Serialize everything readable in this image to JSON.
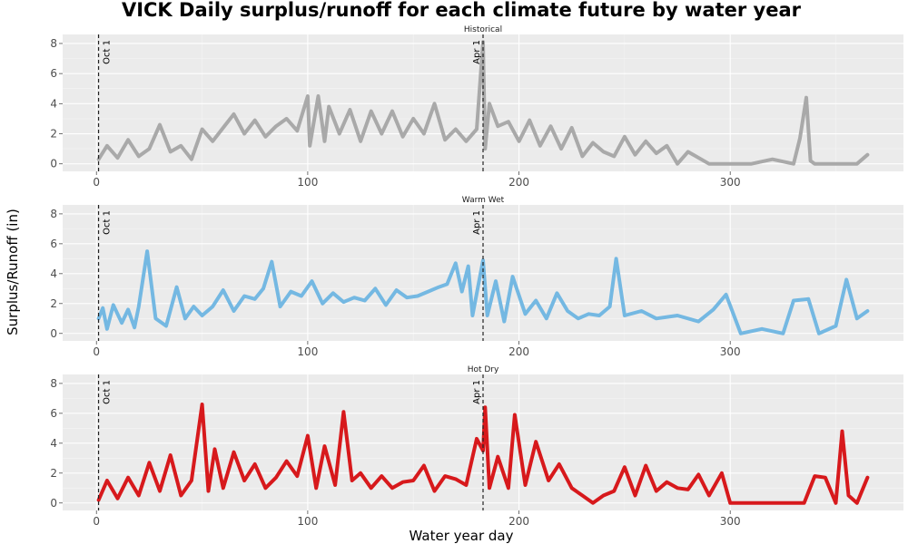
{
  "chart_data": {
    "type": "line",
    "title": "VICK Daily surplus/runoff for each climate future by water year",
    "xlabel": "Water year day",
    "ylabel": "Surplus/Runoff (in)",
    "xlim": [
      -16,
      382
    ],
    "ylim": [
      -0.5,
      8.6
    ],
    "xticks": [
      0,
      100,
      200,
      300
    ],
    "yticks": [
      0,
      2,
      4,
      6,
      8
    ],
    "grid": true,
    "legend": "none",
    "reference_lines": [
      {
        "x": 1,
        "label": "Oct 1"
      },
      {
        "x": 183,
        "label": "Apr 1"
      }
    ],
    "panels": [
      {
        "name": "Historical",
        "color": "#A9A9A9",
        "x": [
          1,
          5,
          10,
          15,
          20,
          25,
          30,
          35,
          40,
          45,
          50,
          55,
          60,
          65,
          70,
          75,
          80,
          85,
          90,
          95,
          100,
          101,
          105,
          108,
          110,
          115,
          120,
          125,
          130,
          135,
          140,
          145,
          150,
          155,
          160,
          165,
          170,
          175,
          180,
          183,
          184,
          186,
          190,
          195,
          200,
          205,
          210,
          215,
          220,
          225,
          230,
          235,
          240,
          245,
          250,
          255,
          260,
          265,
          270,
          275,
          280,
          290,
          300,
          310,
          320,
          330,
          333,
          336,
          338,
          340,
          345,
          350,
          355,
          360,
          365
        ],
        "values": [
          0.3,
          1.2,
          0.4,
          1.6,
          0.5,
          1.0,
          2.6,
          0.8,
          1.2,
          0.3,
          2.3,
          1.5,
          2.4,
          3.3,
          2.0,
          2.9,
          1.8,
          2.5,
          3.0,
          2.2,
          4.5,
          1.2,
          4.5,
          1.5,
          3.8,
          2.0,
          3.6,
          1.5,
          3.5,
          2.0,
          3.5,
          1.8,
          3.0,
          2.0,
          4.0,
          1.6,
          2.3,
          1.5,
          2.3,
          8.1,
          1.0,
          4.0,
          2.5,
          2.8,
          1.5,
          2.9,
          1.2,
          2.5,
          1.0,
          2.4,
          0.5,
          1.4,
          0.8,
          0.5,
          1.8,
          0.6,
          1.5,
          0.7,
          1.2,
          0.0,
          0.8,
          0.0,
          0.0,
          0.0,
          0.3,
          0.0,
          1.7,
          4.4,
          0.2,
          0.0,
          0.0,
          0.0,
          0.0,
          0.0,
          0.6
        ]
      },
      {
        "name": "Warm Wet",
        "color": "#74B8E2",
        "x": [
          1,
          3,
          5,
          8,
          12,
          15,
          18,
          20,
          24,
          28,
          33,
          38,
          42,
          46,
          50,
          55,
          60,
          65,
          70,
          75,
          79,
          83,
          87,
          92,
          97,
          102,
          107,
          112,
          117,
          122,
          127,
          132,
          137,
          142,
          147,
          152,
          157,
          162,
          166,
          170,
          173,
          176,
          178,
          183,
          185,
          189,
          193,
          197,
          203,
          208,
          213,
          218,
          223,
          228,
          233,
          238,
          243,
          246,
          250,
          258,
          265,
          275,
          285,
          292,
          298,
          305,
          315,
          325,
          330,
          337,
          342,
          350,
          355,
          360,
          365
        ],
        "values": [
          1.0,
          1.7,
          0.3,
          1.9,
          0.7,
          1.6,
          0.4,
          1.8,
          5.5,
          1.0,
          0.5,
          3.1,
          1.0,
          1.8,
          1.2,
          1.8,
          2.9,
          1.5,
          2.5,
          2.3,
          3.0,
          4.8,
          1.8,
          2.8,
          2.5,
          3.5,
          2.0,
          2.7,
          2.1,
          2.4,
          2.2,
          3.0,
          1.9,
          2.9,
          2.4,
          2.5,
          2.8,
          3.1,
          3.3,
          4.7,
          2.8,
          4.5,
          1.2,
          4.9,
          1.2,
          3.5,
          0.8,
          3.8,
          1.3,
          2.2,
          1.0,
          2.7,
          1.5,
          1.0,
          1.3,
          1.2,
          1.8,
          5.0,
          1.2,
          1.5,
          1.0,
          1.2,
          0.8,
          1.6,
          2.6,
          0.0,
          0.3,
          0.0,
          2.2,
          2.3,
          0.0,
          0.5,
          3.6,
          1.0,
          1.5
        ]
      },
      {
        "name": "Hot Dry",
        "color": "#D7191C",
        "x": [
          1,
          5,
          10,
          15,
          20,
          25,
          30,
          35,
          40,
          45,
          50,
          53,
          56,
          60,
          65,
          70,
          75,
          80,
          85,
          90,
          95,
          100,
          104,
          108,
          113,
          117,
          121,
          125,
          130,
          135,
          140,
          145,
          150,
          155,
          160,
          165,
          170,
          175,
          180,
          183,
          184,
          186,
          190,
          195,
          198,
          203,
          208,
          214,
          219,
          225,
          230,
          235,
          240,
          245,
          250,
          255,
          260,
          265,
          270,
          275,
          280,
          285,
          290,
          296,
          300,
          310,
          320,
          330,
          335,
          340,
          345,
          350,
          353,
          356,
          360,
          365
        ],
        "values": [
          0.2,
          1.5,
          0.3,
          1.7,
          0.5,
          2.7,
          0.8,
          3.2,
          0.5,
          1.5,
          6.6,
          0.8,
          3.6,
          1.0,
          3.4,
          1.5,
          2.6,
          1.0,
          1.7,
          2.8,
          1.8,
          4.5,
          1.0,
          3.8,
          1.2,
          6.1,
          1.5,
          2.0,
          1.0,
          1.8,
          1.0,
          1.4,
          1.5,
          2.5,
          0.8,
          1.8,
          1.6,
          1.2,
          4.3,
          3.5,
          6.4,
          1.0,
          3.1,
          1.0,
          5.9,
          1.2,
          4.1,
          1.5,
          2.6,
          1.0,
          0.5,
          0.0,
          0.5,
          0.8,
          2.4,
          0.5,
          2.5,
          0.8,
          1.4,
          1.0,
          0.9,
          1.9,
          0.5,
          2.0,
          0.0,
          0.0,
          0.0,
          0.0,
          0.0,
          1.8,
          1.7,
          0.0,
          4.8,
          0.5,
          0.0,
          1.7
        ]
      }
    ]
  }
}
